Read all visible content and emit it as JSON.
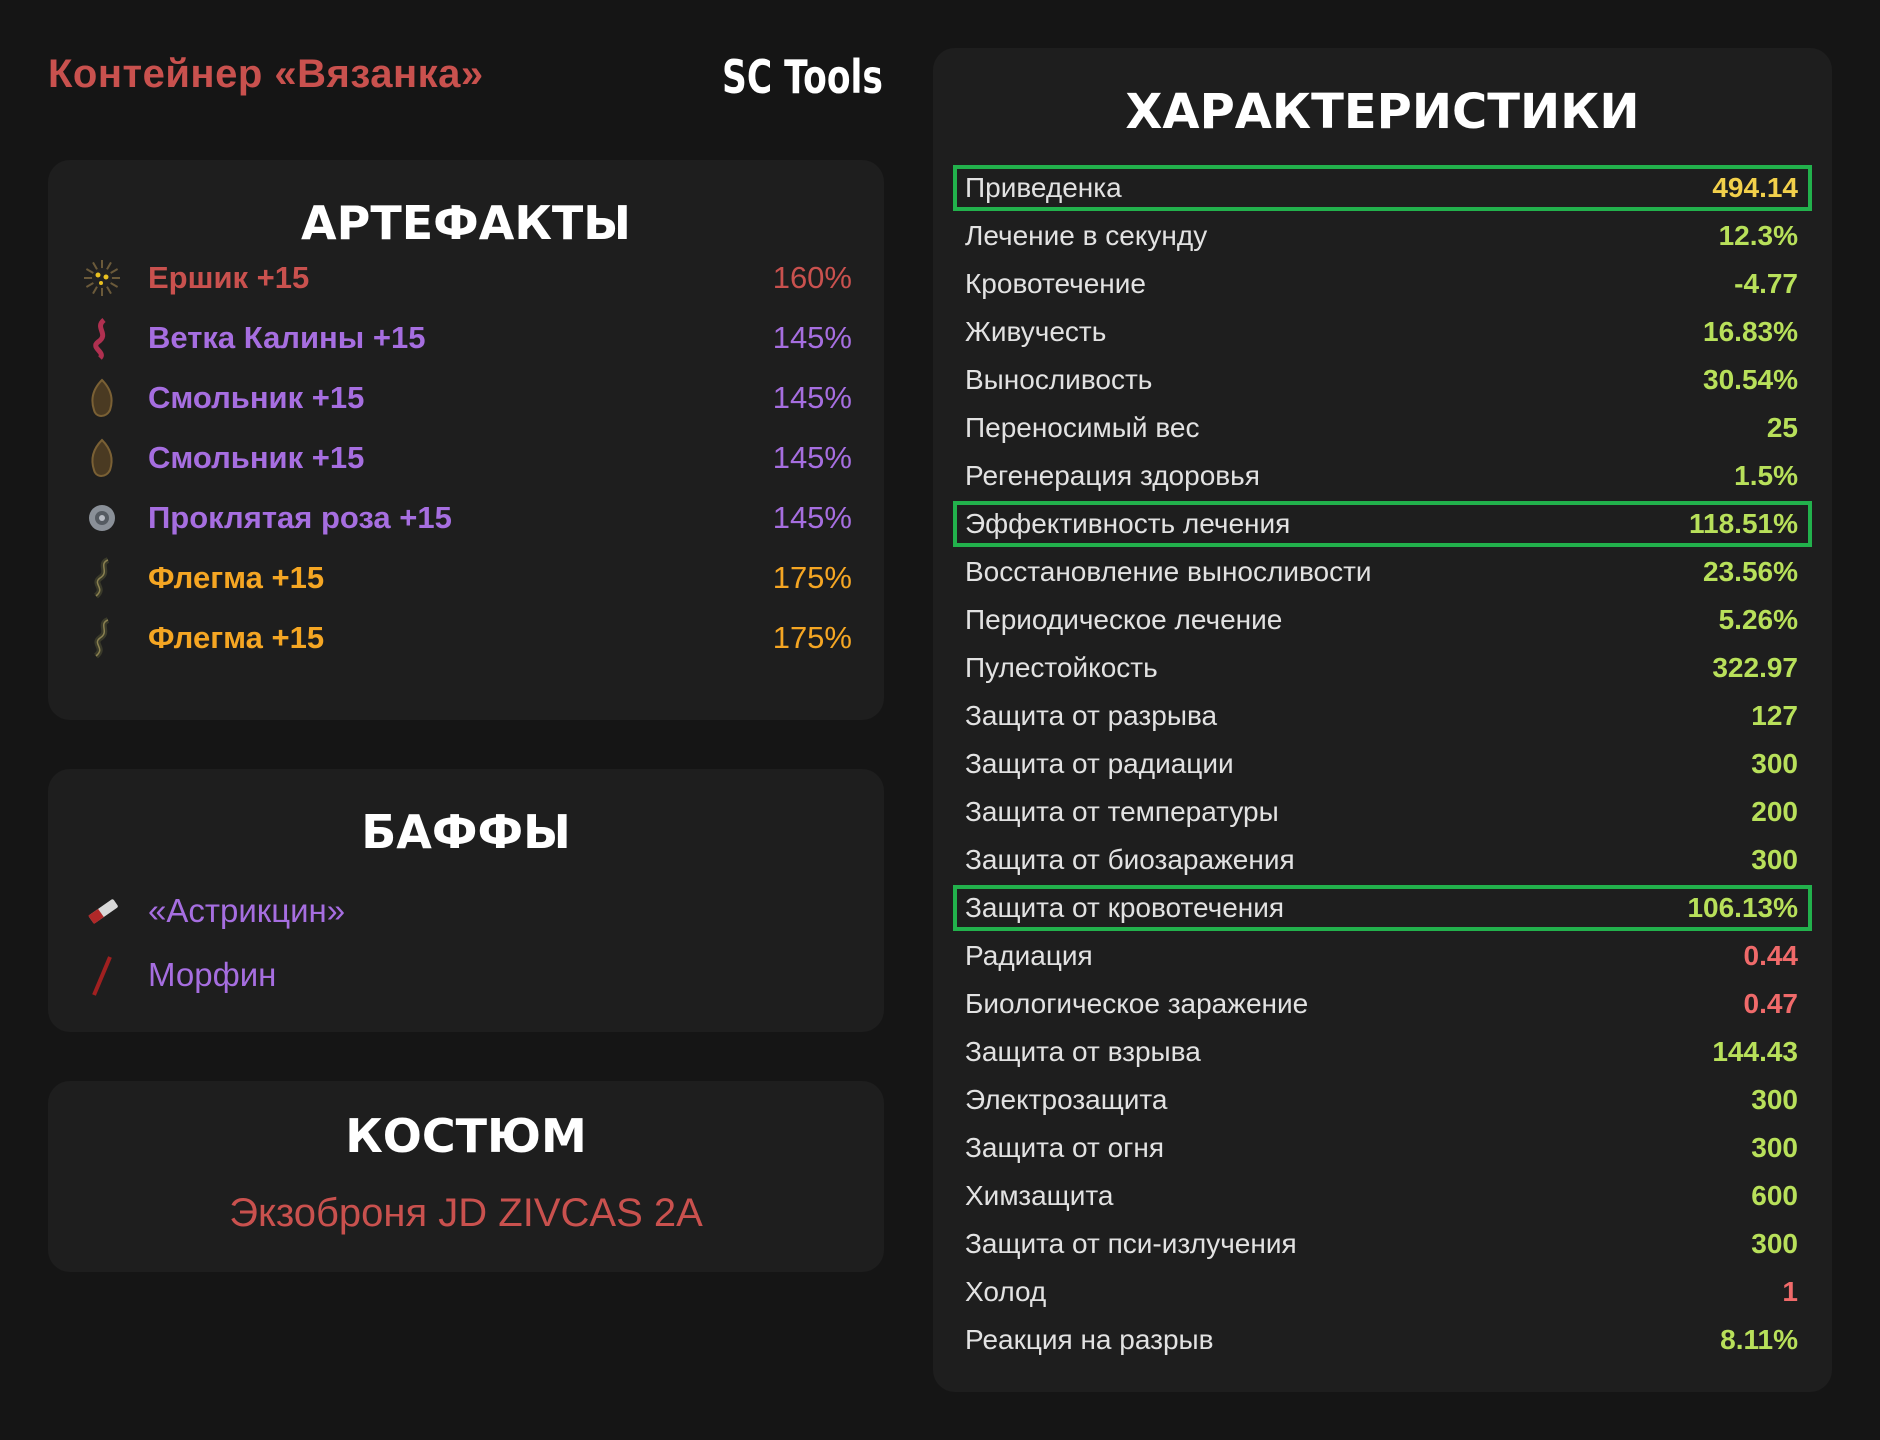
{
  "header": {
    "container_title": "Контейнер «Вязанка»",
    "brand": "SC Tools"
  },
  "colors": {
    "red": "#c9514e",
    "purple": "#a66ee0",
    "orange": "#f5a623",
    "positive": "#b8e05a",
    "highlight_value": "#f2d04b",
    "negative": "#f06a6a",
    "highlight_border": "#22b14c"
  },
  "artifacts": {
    "title": "АРТЕФАКТЫ",
    "items": [
      {
        "name": "Ершик +15",
        "percent": "160%",
        "color": "#c9514e",
        "icon": "urchin-artifact-icon"
      },
      {
        "name": "Ветка Калины +15",
        "percent": "145%",
        "color": "#a66ee0",
        "icon": "viburnum-branch-icon"
      },
      {
        "name": "Смольник +15",
        "percent": "145%",
        "color": "#a66ee0",
        "icon": "resin-artifact-icon"
      },
      {
        "name": "Смольник +15",
        "percent": "145%",
        "color": "#a66ee0",
        "icon": "resin-artifact-icon"
      },
      {
        "name": "Проклятая роза +15",
        "percent": "145%",
        "color": "#a66ee0",
        "icon": "cursed-rose-icon"
      },
      {
        "name": "Флегма +15",
        "percent": "175%",
        "color": "#f5a623",
        "icon": "phlegm-artifact-icon"
      },
      {
        "name": "Флегма +15",
        "percent": "175%",
        "color": "#f5a623",
        "icon": "phlegm-artifact-icon"
      }
    ]
  },
  "buffs": {
    "title": "БАФФЫ",
    "items": [
      {
        "name": "«Астрикцин»",
        "icon": "injector-icon"
      },
      {
        "name": "Морфин",
        "icon": "syringe-icon"
      }
    ]
  },
  "suit": {
    "title": "КОСТЮМ",
    "name": "Экзоброня JD ZIVCAS 2A"
  },
  "stats": {
    "title": "ХАРАКТЕРИСТИКИ",
    "rows": [
      {
        "label": "Приведенка",
        "value": "494.14",
        "tone": "highlight_value",
        "highlighted": true
      },
      {
        "label": "Лечение в секунду",
        "value": "12.3%",
        "tone": "positive"
      },
      {
        "label": "Кровотечение",
        "value": "-4.77",
        "tone": "positive"
      },
      {
        "label": "Живучесть",
        "value": "16.83%",
        "tone": "positive"
      },
      {
        "label": "Выносливость",
        "value": "30.54%",
        "tone": "positive"
      },
      {
        "label": "Переносимый вес",
        "value": "25",
        "tone": "positive"
      },
      {
        "label": "Регенерация здоровья",
        "value": "1.5%",
        "tone": "positive"
      },
      {
        "label": "Эффективность лечения",
        "value": "118.51%",
        "tone": "positive",
        "highlighted": true
      },
      {
        "label": "Восстановление выносливости",
        "value": "23.56%",
        "tone": "positive"
      },
      {
        "label": "Периодическое лечение",
        "value": "5.26%",
        "tone": "positive"
      },
      {
        "label": "Пулестойкость",
        "value": "322.97",
        "tone": "positive"
      },
      {
        "label": "Защита от разрыва",
        "value": "127",
        "tone": "positive"
      },
      {
        "label": "Защита от радиации",
        "value": "300",
        "tone": "positive"
      },
      {
        "label": "Защита от температуры",
        "value": "200",
        "tone": "positive"
      },
      {
        "label": "Защита от биозаражения",
        "value": "300",
        "tone": "positive"
      },
      {
        "label": "Защита от кровотечения",
        "value": "106.13%",
        "tone": "positive",
        "highlighted": true
      },
      {
        "label": "Радиация",
        "value": "0.44",
        "tone": "negative"
      },
      {
        "label": "Биологическое заражение",
        "value": "0.47",
        "tone": "negative"
      },
      {
        "label": "Защита от взрыва",
        "value": "144.43",
        "tone": "positive"
      },
      {
        "label": "Электрозащита",
        "value": "300",
        "tone": "positive"
      },
      {
        "label": "Защита от огня",
        "value": "300",
        "tone": "positive"
      },
      {
        "label": "Химзащита",
        "value": "600",
        "tone": "positive"
      },
      {
        "label": "Защита от пси-излучения",
        "value": "300",
        "tone": "positive"
      },
      {
        "label": "Холод",
        "value": "1",
        "tone": "negative"
      },
      {
        "label": "Реакция на разрыв",
        "value": "8.11%",
        "tone": "positive"
      }
    ]
  }
}
